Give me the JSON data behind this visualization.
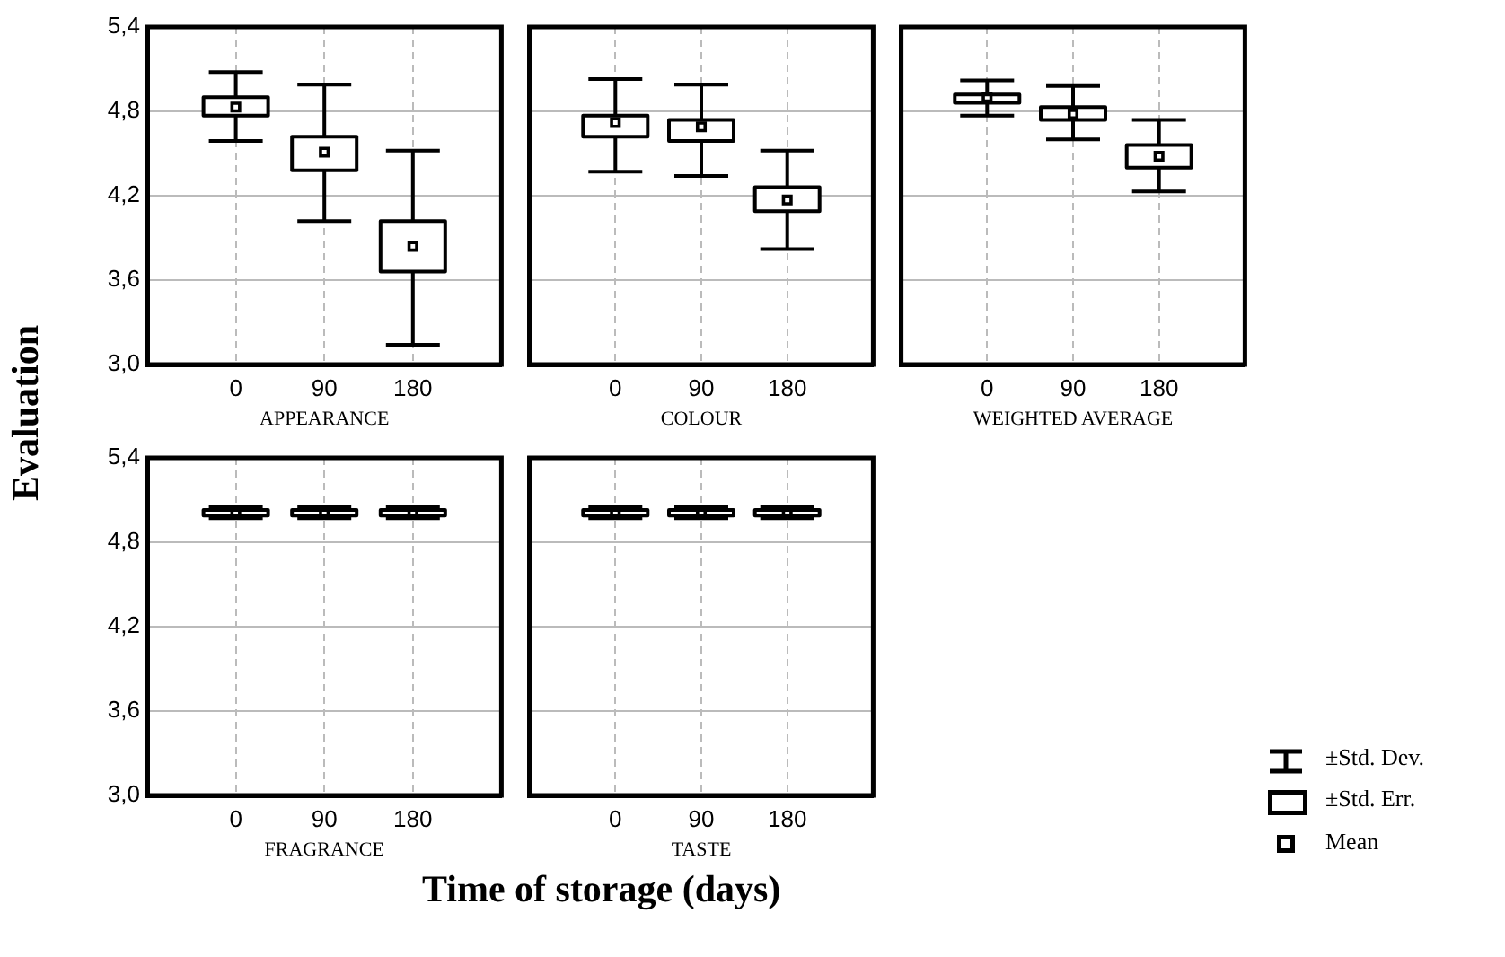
{
  "chart_data": [
    {
      "type": "box",
      "xlabel": "APPEARANCE",
      "categories": [
        "0",
        "90",
        "180"
      ],
      "ylim": [
        3.0,
        5.4
      ],
      "yticks": [
        {
          "value": 3.0,
          "label": "3,0"
        },
        {
          "value": 3.6,
          "label": "3,6"
        },
        {
          "value": 4.2,
          "label": "4,2"
        },
        {
          "value": 4.8,
          "label": "4,8"
        },
        {
          "value": 5.4,
          "label": "5,4"
        }
      ],
      "grid": true,
      "boxes": [
        {
          "low": 4.59,
          "q1": 4.77,
          "median": 4.83,
          "q3": 4.9,
          "high": 5.08
        },
        {
          "low": 4.02,
          "q1": 4.38,
          "median": 4.51,
          "q3": 4.62,
          "high": 4.99
        },
        {
          "low": 3.14,
          "q1": 3.66,
          "median": 3.84,
          "q3": 4.02,
          "high": 4.52
        }
      ]
    },
    {
      "type": "box",
      "xlabel": "COLOUR",
      "categories": [
        "0",
        "90",
        "180"
      ],
      "ylim": [
        3.0,
        5.4
      ],
      "yticks": [
        3.0,
        3.6,
        4.2,
        4.8,
        5.4
      ],
      "grid": true,
      "tick_labels": "x",
      "boxes": [
        {
          "low": 4.37,
          "q1": 4.62,
          "median": 4.72,
          "q3": 4.77,
          "high": 5.03
        },
        {
          "low": 4.34,
          "q1": 4.59,
          "median": 4.69,
          "q3": 4.74,
          "high": 4.99
        },
        {
          "low": 3.82,
          "q1": 4.09,
          "median": 4.17,
          "q3": 4.26,
          "high": 4.52
        }
      ]
    },
    {
      "type": "box",
      "xlabel": "WEIGHTED AVERAGE",
      "categories": [
        "0",
        "90",
        "180"
      ],
      "ylim": [
        3.0,
        5.4
      ],
      "yticks": [
        3.0,
        3.6,
        4.2,
        4.8,
        5.4
      ],
      "grid": true,
      "tick_labels": "x",
      "boxes": [
        {
          "low": 4.77,
          "q1": 4.86,
          "median": 4.9,
          "q3": 4.92,
          "high": 5.02
        },
        {
          "low": 4.6,
          "q1": 4.74,
          "median": 4.78,
          "q3": 4.83,
          "high": 4.98
        },
        {
          "low": 4.23,
          "q1": 4.4,
          "median": 4.48,
          "q3": 4.56,
          "high": 4.74
        }
      ]
    },
    {
      "type": "box",
      "xlabel": "FRAGRANCE",
      "categories": [
        "0",
        "90",
        "180"
      ],
      "ylim": [
        3.0,
        5.4
      ],
      "yticks": [
        {
          "value": 3.0,
          "label": "3,0"
        },
        {
          "value": 3.6,
          "label": "3,6"
        },
        {
          "value": 4.2,
          "label": "4,2"
        },
        {
          "value": 4.8,
          "label": "4,8"
        },
        {
          "value": 5.4,
          "label": "5,4"
        }
      ],
      "grid": true,
      "boxes": [
        {
          "low": 4.97,
          "q1": 4.99,
          "median": 5.01,
          "q3": 5.03,
          "high": 5.05
        },
        {
          "low": 4.97,
          "q1": 4.99,
          "median": 5.01,
          "q3": 5.03,
          "high": 5.05
        },
        {
          "low": 4.97,
          "q1": 4.99,
          "median": 5.01,
          "q3": 5.03,
          "high": 5.05
        }
      ]
    },
    {
      "type": "box",
      "xlabel": "TASTE",
      "categories": [
        "0",
        "90",
        "180"
      ],
      "ylim": [
        3.0,
        5.4
      ],
      "yticks": [
        3.0,
        3.6,
        4.2,
        4.8,
        5.4
      ],
      "grid": true,
      "tick_labels": "x",
      "boxes": [
        {
          "low": 4.97,
          "q1": 4.99,
          "median": 5.01,
          "q3": 5.03,
          "high": 5.05
        },
        {
          "low": 4.97,
          "q1": 4.99,
          "median": 5.01,
          "q3": 5.03,
          "high": 5.05
        },
        {
          "low": 4.97,
          "q1": 4.99,
          "median": 5.01,
          "q3": 5.03,
          "high": 5.05
        }
      ]
    },
    {
      "type": "other",
      "annotations": [
        "Evaluation",
        "Time of storage (days)",
        "±Std. Dev.",
        "±Std. Err.",
        "Mean"
      ]
    }
  ]
}
